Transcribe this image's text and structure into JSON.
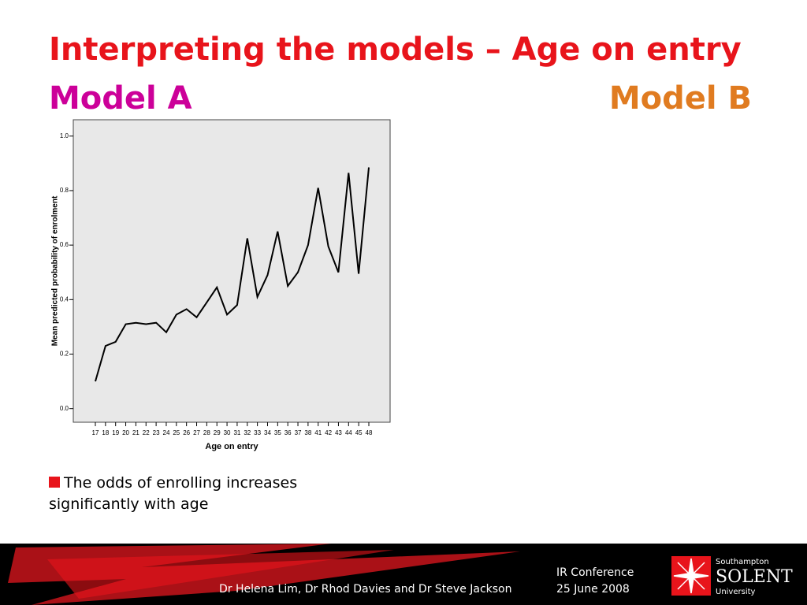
{
  "header": {
    "title": "Interpreting the models – Age on entry",
    "model_a": "Model A",
    "model_b": "Model B"
  },
  "chart_data": {
    "type": "line",
    "x_label": "Age on entry",
    "y_label": "Mean predicted probability of enrolment",
    "categories": [
      "17",
      "18",
      "19",
      "20",
      "21",
      "22",
      "23",
      "24",
      "25",
      "26",
      "27",
      "28",
      "29",
      "30",
      "31",
      "32",
      "33",
      "34",
      "35",
      "36",
      "37",
      "38",
      "41",
      "42",
      "43",
      "44",
      "45",
      "48"
    ],
    "values": [
      0.1,
      0.23,
      0.245,
      0.31,
      0.315,
      0.31,
      0.315,
      0.28,
      0.345,
      0.365,
      0.335,
      0.39,
      0.445,
      0.345,
      0.38,
      0.625,
      0.41,
      0.49,
      0.65,
      0.45,
      0.5,
      0.6,
      0.81,
      0.595,
      0.5,
      0.865,
      0.495,
      0.885
    ],
    "color": "#000000",
    "background": "#e8e8e8",
    "ylim": [
      -0.05,
      1.06
    ],
    "yticks": [
      {
        "value": 0,
        "label": "0.0"
      },
      0.2,
      0.4,
      0.6,
      0.8,
      {
        "value": 1,
        "label": "1.0"
      }
    ]
  },
  "bullet": "The odds of enrolling increases significantly with age",
  "footer": {
    "authors": "Dr Helena Lim, Dr Rhod Davies and Dr Steve Jackson",
    "event": "IR Conference",
    "date": "25 June 2008",
    "logo_top": "Southampton",
    "logo_main": "SOLENT",
    "logo_bottom": "University"
  }
}
